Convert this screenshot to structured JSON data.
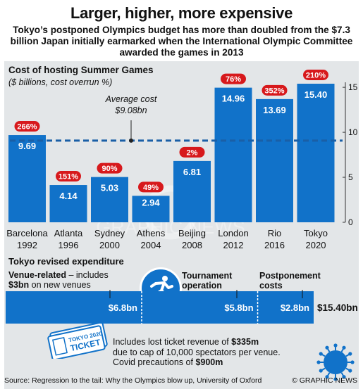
{
  "headline": "Larger, higher, more expensive",
  "subhead": "Tokyo’s postponed Olympics budget has more than doubled from the $7.3 billion Japan initially earmarked when the International Olympic Committee awarded the games in 2013",
  "colors": {
    "bar": "#1172c9",
    "overrun": "#d7191c",
    "panel": "#e3e6e8",
    "dash": "#1a5fa6"
  },
  "chart_data": {
    "type": "bar",
    "title": "Cost of hosting Summer Games",
    "subtitle": "($ billions, cost overrun %)",
    "categories": [
      {
        "city": "Barcelona",
        "year": "1992"
      },
      {
        "city": "Atlanta",
        "year": "1996"
      },
      {
        "city": "Sydney",
        "year": "2000"
      },
      {
        "city": "Athens",
        "year": "2004"
      },
      {
        "city": "Beijing",
        "year": "2008"
      },
      {
        "city": "London",
        "year": "2012"
      },
      {
        "city": "Rio",
        "year": "2016"
      },
      {
        "city": "Tokyo",
        "year": "2020"
      }
    ],
    "values": [
      9.69,
      4.14,
      5.03,
      2.94,
      6.81,
      14.96,
      13.69,
      15.4
    ],
    "value_labels": [
      "9.69",
      "4.14",
      "5.03",
      "2.94",
      "6.81",
      "14.96",
      "13.69",
      "15.40"
    ],
    "overruns": [
      "266%",
      "151%",
      "90%",
      "49%",
      "2%",
      "76%",
      "352%",
      "210%"
    ],
    "average": {
      "value": 9.08,
      "label_line1": "Average cost",
      "label_line2": "$9.08bn"
    },
    "yaxis": {
      "ticks": [
        0,
        5,
        10,
        15
      ],
      "labels": [
        "0",
        "5",
        "10",
        "15"
      ],
      "position": "right"
    },
    "ylim": [
      0,
      15.4
    ],
    "grid": false
  },
  "expenditure": {
    "title": "Tokyo revised expenditure",
    "venue_label_bold": "Venue-related",
    "venue_label_rest": " – includes",
    "venue_label2_bold": "$3bn",
    "venue_label2_rest": " on new venues",
    "tournament_label_1": "Tournament",
    "tournament_label_2": "operation",
    "postponement_label_1": "Postponement",
    "postponement_label_2": "costs",
    "segments": [
      {
        "name": "Venue-related",
        "value": 6.8,
        "label": "$6.8bn"
      },
      {
        "name": "Tournament operation",
        "value": 5.8,
        "label": "$5.8bn"
      },
      {
        "name": "Postponement costs",
        "value": 2.8,
        "label": "$2.8bn"
      }
    ],
    "total": "$15.40bn",
    "note_line1_a": "Includes lost ticket revenue of ",
    "note_line1_b": "$335m",
    "note_line2": "due to cap of 10,000 spectators per venue.",
    "note_line3_a": "Covid precautions of ",
    "note_line3_b": "$900m",
    "ticket_line1": "TOKYO 2020",
    "ticket_line2": "TICKET"
  },
  "source": "Source: Regression to the tail: Why the Olympics blow up, University of Oxford",
  "credit": "© GRAPHIC NEWS",
  "watermark": "GRAPHIC NEWS"
}
